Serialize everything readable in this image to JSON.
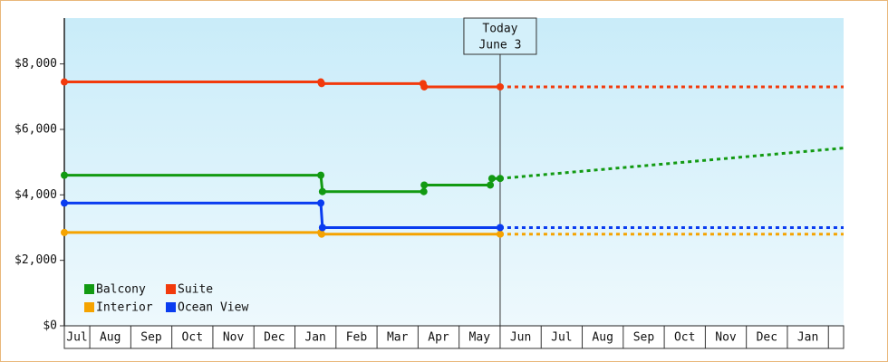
{
  "chart_data": {
    "type": "line",
    "ylim": [
      0,
      9400
    ],
    "yticks": [
      {
        "value": 0,
        "label": "$0"
      },
      {
        "value": 2000,
        "label": "$2,000"
      },
      {
        "value": 4000,
        "label": "$4,000"
      },
      {
        "value": 6000,
        "label": "$6,000"
      },
      {
        "value": 8000,
        "label": "$8,000"
      }
    ],
    "xlim": [
      0.38,
      19.37
    ],
    "xticks": [
      1,
      2,
      3,
      4,
      5,
      6,
      7,
      8,
      9,
      10,
      11,
      12,
      13,
      14,
      15,
      16,
      17,
      18,
      19
    ],
    "categories": [
      "Jul",
      "Aug",
      "Sep",
      "Oct",
      "Nov",
      "Dec",
      "Jan",
      "Feb",
      "Mar",
      "Apr",
      "May",
      "Jun",
      "Jul",
      "Aug",
      "Sep",
      "Oct",
      "Nov",
      "Dec",
      "Jan",
      null
    ],
    "today": {
      "x": 11.0,
      "label": [
        "Today",
        "June 3"
      ]
    },
    "legend": "lower left",
    "series": [
      {
        "name": "Balcony",
        "color": "#129a12",
        "x": [
          0.38,
          6.63,
          6.67,
          9.14,
          9.15,
          10.76,
          10.8,
          11.0
        ],
        "values": [
          4600,
          4600,
          4100,
          4100,
          4300,
          4300,
          4500,
          4500
        ],
        "projected": {
          "x": [
            11.0,
            19.37
          ],
          "values": [
            4500,
            5430
          ]
        }
      },
      {
        "name": "Suite",
        "color": "#f23a0c",
        "x": [
          0.38,
          6.63,
          6.65,
          9.12,
          9.15,
          11.0
        ],
        "values": [
          7450,
          7450,
          7400,
          7400,
          7300,
          7300
        ],
        "projected": {
          "x": [
            11.0,
            19.37
          ],
          "values": [
            7300,
            7300
          ]
        }
      },
      {
        "name": "Interior",
        "color": "#f5a300",
        "x": [
          0.38,
          6.63,
          6.65,
          11.0
        ],
        "values": [
          2850,
          2850,
          2800,
          2800
        ],
        "projected": {
          "x": [
            11.0,
            19.37
          ],
          "values": [
            2800,
            2800
          ]
        }
      },
      {
        "name": "Ocean View",
        "color": "#0a3cf0",
        "x": [
          0.38,
          6.63,
          6.67,
          11.0
        ],
        "values": [
          3750,
          3750,
          3000,
          3000
        ],
        "projected": {
          "x": [
            11.0,
            19.37
          ],
          "values": [
            3000,
            3000
          ]
        }
      }
    ]
  }
}
